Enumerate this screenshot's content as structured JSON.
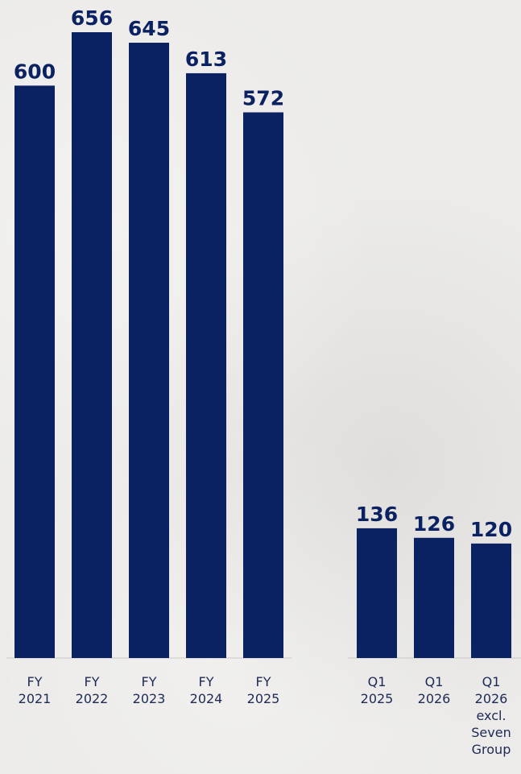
{
  "chart_data": {
    "type": "bar",
    "colors": {
      "bar": "#0b2262",
      "label": "#0b2262",
      "tick": "#1d2a55",
      "axis": "#c9c8c5"
    },
    "ylim": [
      0,
      700
    ],
    "grid": false,
    "legend": "none",
    "groups": [
      {
        "categories": [
          [
            "FY",
            "2021"
          ],
          [
            "FY",
            "2022"
          ],
          [
            "FY",
            "2023"
          ],
          [
            "FY",
            "2024"
          ],
          [
            "FY",
            "2025"
          ]
        ],
        "values": [
          600,
          656,
          645,
          613,
          572
        ]
      },
      {
        "categories": [
          [
            "Q1",
            "2025"
          ],
          [
            "Q1",
            "2026"
          ],
          [
            "Q1",
            "2026",
            "excl.",
            "Seven",
            "Group"
          ]
        ],
        "values": [
          136,
          126,
          120
        ]
      }
    ]
  }
}
